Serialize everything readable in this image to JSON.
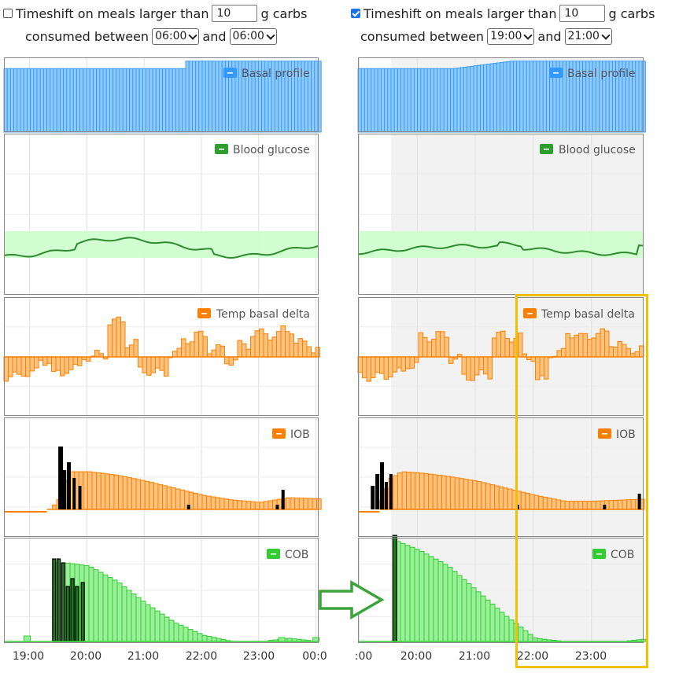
{
  "left": {
    "label_before": "Timeshift on meals larger than",
    "threshold": "10",
    "label_after": "g carbs",
    "label_between": "consumed between",
    "from": "06:00",
    "to": "06:00",
    "and": "and",
    "checked": false
  },
  "right": {
    "label_before": "Timeshift on meals larger than",
    "threshold": "10",
    "label_after": "g carbs",
    "label_between": "consumed between",
    "from": "19:00",
    "to": "21:00",
    "and": "and",
    "checked": true
  },
  "legends": {
    "basal": "Basal profile",
    "bg": "Blood glucose",
    "temp": "Temp basal delta",
    "iob": "IOB",
    "cob": "COB"
  },
  "xaxis": {
    "left_ticks": [
      "19:00",
      "20:00",
      "21:00",
      "22:00",
      "23:00",
      "00:0"
    ],
    "right_ticks": [
      ":00",
      "20:00",
      "21:00",
      "22:00",
      "23:00"
    ]
  },
  "colors": {
    "basal": "#3399ff",
    "bg": "#2e8b2e",
    "bg_band": "#ccffcc",
    "temp": "#ff7f00",
    "iob": "#ff7f00",
    "carb_black": "#000000",
    "cob": "#33cc33",
    "highlight": "#f2c200",
    "arrow": "#3aa33a"
  },
  "chart_data": [
    {
      "type": "bar",
      "panel": "left",
      "series": [
        {
          "name": "Basal profile",
          "x_hours": [
            18.6,
            21.7,
            24.0
          ],
          "values": [
            0.85,
            0.95,
            0.95
          ]
        },
        {
          "name": "Temp basal delta",
          "x_hours": [
            18.6,
            18.85,
            19.1,
            19.35,
            19.6,
            19.85,
            20.1,
            20.35,
            20.6,
            20.85,
            21.1,
            21.35,
            21.6,
            21.85,
            22.1,
            22.35,
            22.6,
            22.85,
            23.1,
            23.35,
            23.6,
            23.85
          ],
          "values": [
            -0.5,
            -0.4,
            -0.1,
            -0.45,
            -0.3,
            0.0,
            0.05,
            0.9,
            0.35,
            -0.35,
            -0.4,
            0.1,
            0.45,
            0.55,
            0.2,
            -0.1,
            0.3,
            0.6,
            0.55,
            0.7,
            0.35,
            0.2
          ]
        },
        {
          "name": "IOB",
          "x_hours": [
            18.6,
            19.0,
            19.3,
            19.5,
            19.7,
            20.0,
            20.5,
            21.0,
            21.5,
            22.0,
            22.5,
            23.0,
            23.5,
            24.0
          ],
          "values": [
            0.0,
            -0.1,
            -0.1,
            0.5,
            1.6,
            1.6,
            1.45,
            1.2,
            0.9,
            0.6,
            0.4,
            0.3,
            0.5,
            0.45
          ]
        },
        {
          "name": "COB",
          "x_hours": [
            18.6,
            19.0,
            19.4,
            19.6,
            20.0,
            20.5,
            21.0,
            21.5,
            22.0,
            22.5,
            23.0,
            23.5,
            24.0
          ],
          "values": [
            0,
            0,
            25,
            25,
            24,
            19,
            12,
            6,
            2,
            0,
            0,
            1,
            0
          ]
        }
      ],
      "ticks": [
        "19:00",
        "20:00",
        "21:00",
        "22:00",
        "23:00",
        "00:0"
      ]
    },
    {
      "type": "bar",
      "panel": "right",
      "series": [
        {
          "name": "Basal profile",
          "x_hours": [
            19.0,
            21.6,
            24.0
          ],
          "values": [
            0.85,
            0.95,
            0.95
          ]
        },
        {
          "name": "Temp basal delta",
          "x_hours": [
            19.0,
            19.5,
            19.75,
            20.0,
            20.25,
            20.5,
            20.75,
            21.0,
            21.25,
            21.5,
            21.75,
            22.0,
            22.25,
            22.5,
            22.75,
            23.0,
            23.25,
            23.5,
            23.75
          ],
          "values": [
            -0.5,
            -0.4,
            -0.2,
            0.5,
            0.55,
            -0.05,
            -0.5,
            -0.45,
            0.55,
            0.5,
            0.0,
            -0.6,
            0.1,
            0.6,
            0.5,
            0.6,
            0.35,
            0.2,
            0.2
          ]
        },
        {
          "name": "IOB",
          "x_hours": [
            19.0,
            19.3,
            19.5,
            19.7,
            20.0,
            20.5,
            21.0,
            21.5,
            22.0,
            22.5,
            23.0,
            23.5,
            24.0
          ],
          "values": [
            0.0,
            0.0,
            1.3,
            1.6,
            1.55,
            1.4,
            1.2,
            0.9,
            0.6,
            0.35,
            0.35,
            0.4,
            0.45
          ]
        },
        {
          "name": "COB",
          "x_hours": [
            19.6,
            20.0,
            20.5,
            21.0,
            21.5,
            22.0,
            22.5,
            23.0,
            23.5,
            24.0
          ],
          "values": [
            32,
            29,
            24,
            16,
            8,
            1,
            0,
            0,
            0,
            1
          ]
        }
      ],
      "ticks": [
        ":00",
        "20:00",
        "21:00",
        "22:00",
        "23:00"
      ]
    }
  ]
}
